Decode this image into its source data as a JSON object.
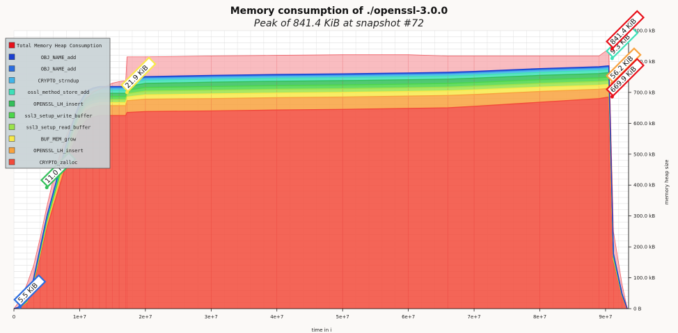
{
  "chart_data": {
    "type": "area",
    "title": "Memory consumption of ./openssl-3.0.0",
    "subtitle": "Peak of 841.4 KiB at snapshot #72",
    "xlabel": "time in i",
    "ylabel": "memory heap size",
    "xlim": [
      0,
      93500000
    ],
    "ylim": [
      0,
      900
    ],
    "x_ticks": [
      {
        "v": 0,
        "label": "0"
      },
      {
        "v": 10000000,
        "label": "1e+7"
      },
      {
        "v": 20000000,
        "label": "2e+7"
      },
      {
        "v": 30000000,
        "label": "3e+7"
      },
      {
        "v": 40000000,
        "label": "4e+7"
      },
      {
        "v": 50000000,
        "label": "5e+7"
      },
      {
        "v": 60000000,
        "label": "6e+7"
      },
      {
        "v": 70000000,
        "label": "7e+7"
      },
      {
        "v": 80000000,
        "label": "8e+7"
      },
      {
        "v": 90000000,
        "label": "9e+7"
      }
    ],
    "y_ticks": [
      {
        "v": 0,
        "label": "0 B"
      },
      {
        "v": 100,
        "label": "100.0 kB"
      },
      {
        "v": 200,
        "label": "200.0 kB"
      },
      {
        "v": 300,
        "label": "300.0 kB"
      },
      {
        "v": 400,
        "label": "400.0 kB"
      },
      {
        "v": 500,
        "label": "500.0 kB"
      },
      {
        "v": 600,
        "label": "600.0 kB"
      },
      {
        "v": 700,
        "label": "700.0 kB"
      },
      {
        "v": 800,
        "label": "800.0 kB"
      },
      {
        "v": 900,
        "label": "900.0 kB"
      }
    ],
    "grid": true,
    "legend_position": "top-left",
    "x": [
      0,
      1000000,
      2000000,
      3000000,
      4000000,
      5000000,
      6000000,
      7000000,
      8000000,
      9000000,
      10000000,
      11000000,
      12000000,
      13000000,
      14000000,
      15000000,
      16000000,
      17000000,
      17200000,
      20000000,
      30000000,
      40000000,
      50000000,
      60000000,
      66000000,
      70000000,
      80000000,
      89000000,
      90500000,
      91200000,
      92500000,
      93300000
    ],
    "series": [
      {
        "name": "CRYPTO_zalloc",
        "color": "#f24a3a",
        "values": [
          0,
          5,
          20,
          80,
          170,
          260,
          330,
          400,
          470,
          530,
          580,
          610,
          620,
          625,
          625,
          625,
          625,
          625,
          635,
          638,
          640,
          643,
          645,
          648,
          650,
          655,
          668,
          680,
          685,
          150,
          40,
          0
        ]
      },
      {
        "name": "OPENSSL_LH_insert",
        "color": "#f8a23e",
        "values": [
          0,
          1,
          2,
          5,
          8,
          12,
          15,
          18,
          22,
          26,
          30,
          32,
          32,
          32,
          32,
          32,
          32,
          32,
          38,
          40,
          40,
          40,
          40,
          40,
          40,
          38,
          35,
          30,
          28,
          8,
          2,
          0
        ]
      },
      {
        "name": "BUF_MEM_grow",
        "color": "#f7e94a",
        "values": [
          0,
          0,
          1,
          2,
          3,
          4,
          5,
          6,
          7,
          8,
          9,
          10,
          10,
          10,
          10,
          10,
          10,
          10,
          12,
          14,
          15,
          15,
          15,
          15,
          15,
          15,
          14,
          13,
          13,
          3,
          1,
          0
        ]
      },
      {
        "name": "ssl3_setup_read_buffer",
        "color": "#9be34a",
        "values": [
          0,
          0,
          1,
          2,
          3,
          4,
          5,
          6,
          7,
          8,
          9,
          10,
          10,
          10,
          10,
          10,
          10,
          10,
          11,
          12,
          12,
          12,
          12,
          12,
          12,
          12,
          12,
          12,
          12,
          3,
          1,
          0
        ]
      },
      {
        "name": "ssl3_setup_write_buffer",
        "color": "#4cd64a",
        "values": [
          0,
          0,
          1,
          2,
          3,
          4,
          5,
          6,
          7,
          8,
          9,
          10,
          10,
          10,
          10,
          10,
          10,
          10,
          11,
          12,
          12,
          12,
          12,
          12,
          12,
          12,
          12,
          12,
          12,
          3,
          1,
          0
        ]
      },
      {
        "name": "OPENSSL_LH_insert",
        "color": "#33c05a",
        "values": [
          0,
          0,
          1,
          2,
          3,
          4,
          5,
          6,
          7,
          8,
          9,
          10,
          10,
          10,
          10,
          10,
          10,
          10,
          12,
          13,
          14,
          14,
          14,
          14,
          14,
          14,
          14,
          14,
          14,
          4,
          1,
          0
        ]
      },
      {
        "name": "ossl_method_store_add",
        "color": "#3ee0b8",
        "values": [
          0,
          0,
          1,
          2,
          3,
          4,
          5,
          6,
          7,
          8,
          9,
          10,
          10,
          10,
          10,
          10,
          10,
          10,
          10,
          10,
          10,
          10,
          10,
          10,
          10,
          10,
          10,
          10,
          10,
          3,
          1,
          0
        ]
      },
      {
        "name": "CRYPTO_strndup",
        "color": "#42b4e8",
        "values": [
          0,
          0,
          1,
          1,
          2,
          3,
          3,
          4,
          4,
          5,
          5,
          6,
          6,
          6,
          6,
          6,
          6,
          6,
          6,
          6,
          6,
          6,
          6,
          6,
          6,
          6,
          6,
          6,
          6,
          2,
          1,
          0
        ]
      },
      {
        "name": "OBJ_NAME_add",
        "color": "#2a6ce0",
        "values": [
          0,
          0,
          1,
          1,
          2,
          2,
          3,
          3,
          3,
          4,
          4,
          4,
          4,
          4,
          4,
          4,
          4,
          4,
          4,
          4,
          4,
          4,
          4,
          4,
          4,
          4,
          4,
          4,
          4,
          1,
          0,
          0
        ]
      },
      {
        "name": "OBJ_NAME_add",
        "color": "#1b3fd0",
        "values": [
          0,
          0,
          0,
          1,
          1,
          1,
          1,
          2,
          2,
          2,
          2,
          2,
          2,
          2,
          2,
          2,
          2,
          2,
          2,
          2,
          2,
          2,
          2,
          2,
          2,
          2,
          2,
          2,
          2,
          1,
          0,
          0
        ]
      },
      {
        "name": "Total Memory Heap Consumption",
        "color": "#e8101a",
        "values": [
          0,
          30,
          80,
          140,
          230,
          330,
          420,
          500,
          560,
          610,
          650,
          680,
          700,
          710,
          720,
          730,
          735,
          738,
          815,
          815,
          818,
          820,
          822,
          822,
          818,
          818,
          818,
          818,
          841,
          250,
          80,
          0
        ]
      }
    ],
    "legend": [
      {
        "label": "Total Memory Heap Consumption",
        "color": "#e8101a"
      },
      {
        "label": "OBJ_NAME_add",
        "color": "#1b3fd0"
      },
      {
        "label": "OBJ_NAME_add",
        "color": "#2a6ce0"
      },
      {
        "label": "CRYPTO_strndup",
        "color": "#42b4e8"
      },
      {
        "label": "ossl_method_store_add",
        "color": "#3ee0b8"
      },
      {
        "label": "OPENSSL_LH_insert",
        "color": "#33c05a"
      },
      {
        "label": "ssl3_setup_write_buffer",
        "color": "#4cd64a"
      },
      {
        "label": "ssl3_setup_read_buffer",
        "color": "#9be34a"
      },
      {
        "label": "BUF_MEM_grow",
        "color": "#f7e94a"
      },
      {
        "label": "OPENSSL_LH_insert",
        "color": "#f8a23e"
      },
      {
        "label": "CRYPTO_zalloc",
        "color": "#f24a3a"
      }
    ],
    "annotations": [
      {
        "text": "5.5 KiB",
        "x": 900000,
        "y": 5.5,
        "color": "#2a6ce0"
      },
      {
        "text": "11.0 KiB",
        "x": 5000000,
        "y": 392,
        "color": "#33c05a"
      },
      {
        "text": "21.9 KiB",
        "x": 17200000,
        "y": 700,
        "color": "#f7e94a"
      },
      {
        "text": "9.3 KiB",
        "x": 91000000,
        "y": 810,
        "color": "#3ee0b8"
      },
      {
        "text": "56.2 KiB",
        "x": 91000000,
        "y": 730,
        "color": "#f8a23e"
      },
      {
        "text": "669.9 KiB",
        "x": 91000000,
        "y": 686,
        "color": "#e8101a"
      },
      {
        "text": "841.4 KiB",
        "x": 91000000,
        "y": 841,
        "color": "#e8101a"
      }
    ]
  }
}
